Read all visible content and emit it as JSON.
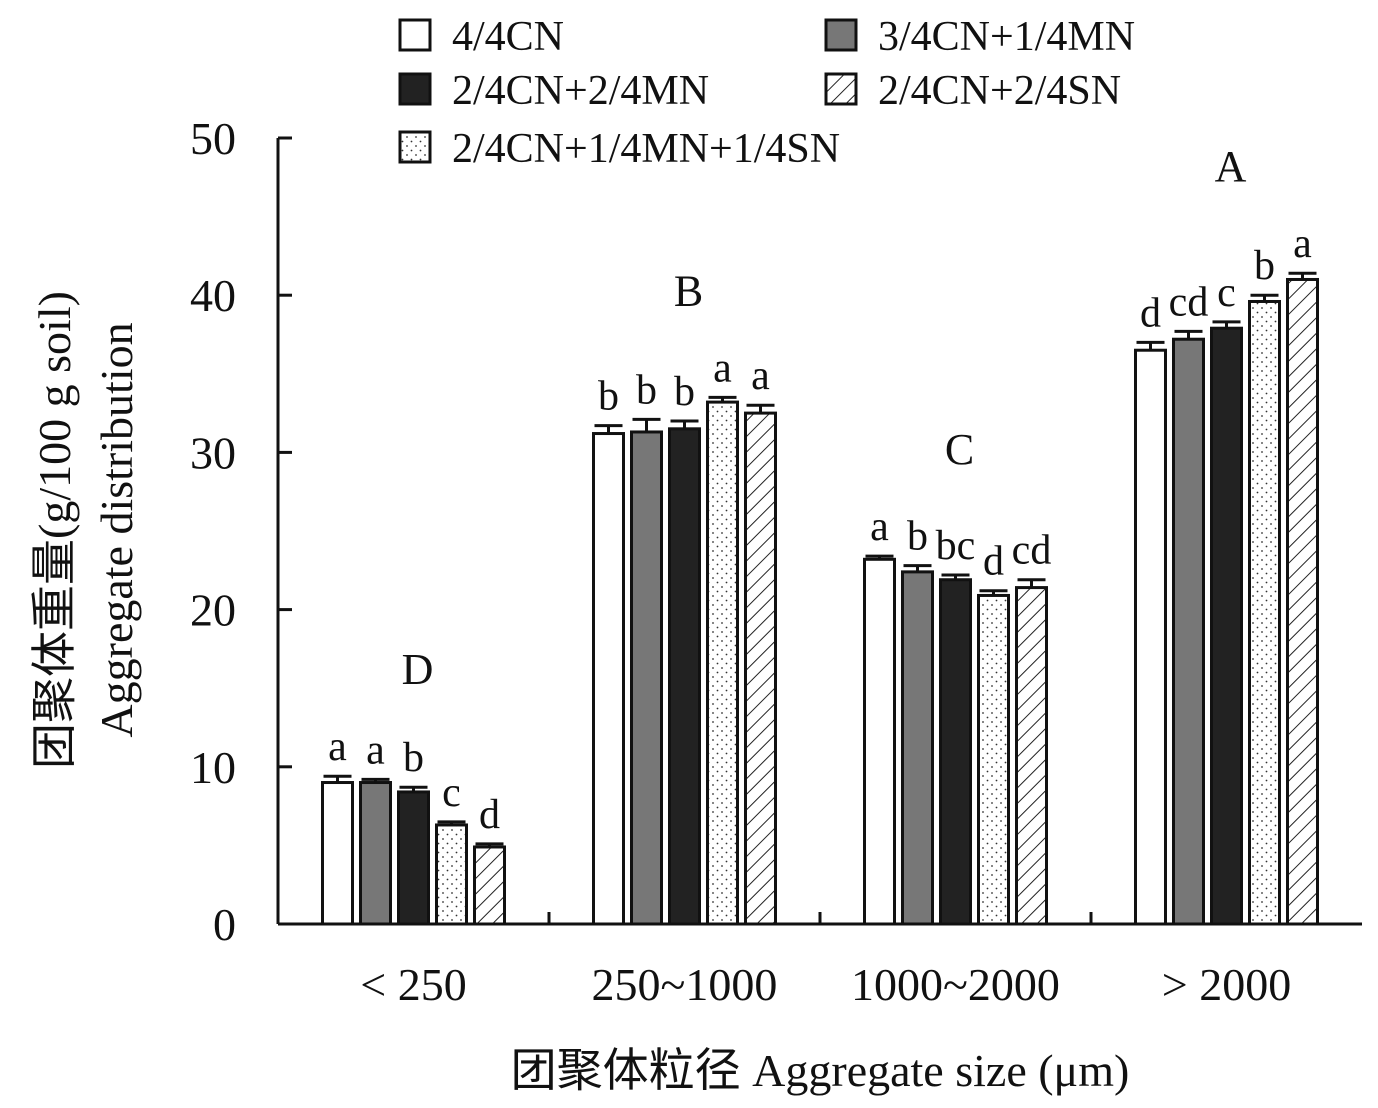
{
  "chart_data": {
    "type": "bar",
    "categories": [
      "< 250",
      "250~1000",
      "1000~2000",
      "> 2000"
    ],
    "ylim": [
      0,
      50
    ],
    "yticks": [
      0,
      10,
      20,
      30,
      40,
      50
    ],
    "xlabel": "团聚体粒径 Aggregate size (μm)",
    "ylabel_line1": "团聚体重量(g/100 g soil)",
    "ylabel_line2": "Aggregate distribution",
    "grid": false,
    "legend_position": "top",
    "series": [
      {
        "name": "4/4CN",
        "pattern": "white",
        "values": [
          9.0,
          31.2,
          23.2,
          36.5
        ],
        "errors": [
          0.4,
          0.5,
          0.2,
          0.5
        ],
        "letters": [
          "a",
          "b",
          "a",
          "d"
        ]
      },
      {
        "name": "3/4CN+1/4MN",
        "pattern": "gray",
        "values": [
          9.0,
          31.3,
          22.4,
          37.2
        ],
        "errors": [
          0.2,
          0.8,
          0.4,
          0.5
        ],
        "letters": [
          "a",
          "b",
          "b",
          "cd"
        ]
      },
      {
        "name": "2/4CN+2/4MN",
        "pattern": "black",
        "values": [
          8.4,
          31.5,
          21.9,
          37.9
        ],
        "errors": [
          0.3,
          0.5,
          0.3,
          0.4
        ],
        "letters": [
          "b",
          "b",
          "bc",
          "c"
        ]
      },
      {
        "name": "2/4CN+1/4MN+1/4SN",
        "pattern": "dotted",
        "values": [
          6.3,
          33.2,
          20.9,
          39.6
        ],
        "errors": [
          0.2,
          0.3,
          0.3,
          0.4
        ],
        "letters": [
          "c",
          "a",
          "d",
          "b"
        ]
      },
      {
        "name": "2/4CN+2/4SN",
        "pattern": "hatched",
        "values": [
          4.9,
          32.5,
          21.4,
          41.0
        ],
        "errors": [
          0.2,
          0.5,
          0.5,
          0.4
        ],
        "letters": [
          "d",
          "a",
          "cd",
          "a"
        ]
      }
    ],
    "group_letters": [
      "D",
      "B",
      "C",
      "A"
    ],
    "legend_order": [
      0,
      1,
      2,
      4,
      3
    ]
  }
}
